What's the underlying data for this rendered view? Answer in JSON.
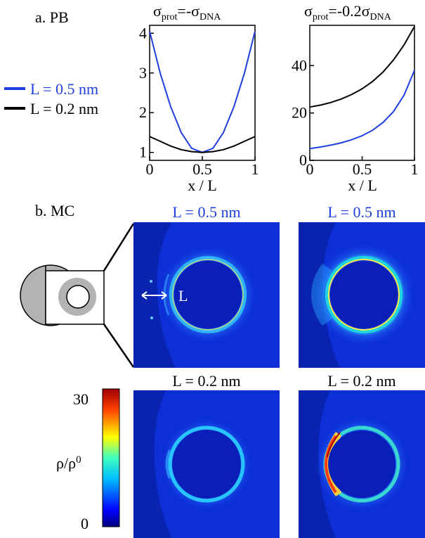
{
  "panel_a_label": "a. PB",
  "panel_b_label": "b. MC",
  "legend": [
    {
      "label": "L = 0.5 nm",
      "color": "#1f3fe0"
    },
    {
      "label": "L = 0.2 nm",
      "color": "#000000"
    }
  ],
  "chart_data": [
    {
      "type": "line",
      "title_main": "σ",
      "title_sub1": "prot",
      "title_eq": "=-σ",
      "title_sub2": "DNA",
      "xlabel": "x / L",
      "ylabel": "",
      "xlim": [
        0,
        1
      ],
      "ylim": [
        0.8,
        4.2
      ],
      "xticks": [
        "0",
        "0.5",
        "1"
      ],
      "yticks": [
        "1",
        "2",
        "3",
        "4"
      ],
      "series": [
        {
          "name": "L = 0.5 nm",
          "color": "#1f3fe0",
          "x": [
            0,
            0.1,
            0.2,
            0.3,
            0.4,
            0.5,
            0.6,
            0.7,
            0.8,
            0.9,
            1.0
          ],
          "y": [
            4.05,
            3.0,
            2.15,
            1.5,
            1.1,
            1.0,
            1.1,
            1.5,
            2.15,
            3.0,
            4.05
          ]
        },
        {
          "name": "L = 0.2 nm",
          "color": "#000000",
          "x": [
            0,
            0.1,
            0.2,
            0.3,
            0.4,
            0.5,
            0.6,
            0.7,
            0.8,
            0.9,
            1.0
          ],
          "y": [
            1.4,
            1.28,
            1.16,
            1.07,
            1.02,
            1.0,
            1.02,
            1.07,
            1.16,
            1.28,
            1.4
          ]
        }
      ]
    },
    {
      "type": "line",
      "title_main": "σ",
      "title_sub1": "prot",
      "title_eq": "=-0.2σ",
      "title_sub2": "DNA",
      "xlabel": "x / L",
      "ylabel": "",
      "xlim": [
        0,
        1
      ],
      "ylim": [
        0,
        57
      ],
      "xticks": [
        "0",
        "0.5",
        "1"
      ],
      "yticks": [
        "0",
        "20",
        "40"
      ],
      "series": [
        {
          "name": "L = 0.5 nm",
          "color": "#1f3fe0",
          "x": [
            0,
            0.1,
            0.2,
            0.3,
            0.4,
            0.5,
            0.6,
            0.7,
            0.8,
            0.9,
            1.0
          ],
          "y": [
            5.0,
            5.6,
            6.4,
            7.4,
            8.7,
            10.4,
            12.7,
            16.0,
            20.6,
            27.5,
            38.0
          ]
        },
        {
          "name": "L = 0.2 nm",
          "color": "#000000",
          "x": [
            0,
            0.1,
            0.2,
            0.3,
            0.4,
            0.5,
            0.6,
            0.7,
            0.8,
            0.9,
            1.0
          ],
          "y": [
            22.5,
            23.3,
            24.4,
            25.9,
            27.8,
            30.2,
            33.3,
            37.3,
            42.4,
            48.7,
            56.5
          ]
        }
      ]
    },
    {
      "type": "heatmap",
      "colorbar_label_main": "ρ/ρ",
      "colorbar_label_sup": "0",
      "colorbar_range": [
        0,
        30
      ],
      "colorbar_ticks": [
        "30",
        "0"
      ],
      "arrow_label": "L",
      "maps": [
        {
          "title": "L = 0.5 nm",
          "title_color": "#1f3fe0"
        },
        {
          "title": "L = 0.5 nm",
          "title_color": "#1f3fe0"
        },
        {
          "title": "L = 0.2 nm",
          "title_color": "#000000"
        },
        {
          "title": "L = 0.2 nm",
          "title_color": "#000000"
        }
      ]
    }
  ]
}
